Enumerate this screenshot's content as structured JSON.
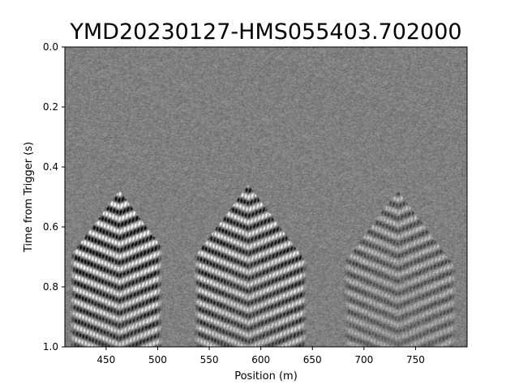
{
  "chart_data": {
    "type": "heatmap",
    "title": "YMD20230127-HMS055403.702000",
    "xlabel": "Position (m)",
    "ylabel": "Time from Trigger (s)",
    "xlim": [
      410,
      800
    ],
    "ylim": [
      1.0,
      0.0
    ],
    "x_ticks": [
      {
        "value": 450,
        "label": "450"
      },
      {
        "value": 500,
        "label": "500"
      },
      {
        "value": 550,
        "label": "550"
      },
      {
        "value": 600,
        "label": "600"
      },
      {
        "value": 650,
        "label": "650"
      },
      {
        "value": 700,
        "label": "700"
      },
      {
        "value": 750,
        "label": "750"
      }
    ],
    "y_ticks": [
      {
        "value": 0.0,
        "label": "0.0"
      },
      {
        "value": 0.2,
        "label": "0.2"
      },
      {
        "value": 0.4,
        "label": "0.4"
      },
      {
        "value": 0.6,
        "label": "0.6"
      },
      {
        "value": 0.8,
        "label": "0.8"
      },
      {
        "value": 1.0,
        "label": "1.0"
      }
    ],
    "colormap": "gray",
    "grid": false,
    "events": [
      {
        "apex_position": 463,
        "onset_time": 0.48,
        "x_range": [
          415,
          505
        ],
        "intensity": 1.0
      },
      {
        "apex_position": 588,
        "onset_time": 0.46,
        "x_range": [
          535,
          645
        ],
        "intensity": 0.85
      },
      {
        "apex_position": 733,
        "onset_time": 0.48,
        "x_range": [
          680,
          790
        ],
        "intensity": 0.45
      }
    ]
  }
}
